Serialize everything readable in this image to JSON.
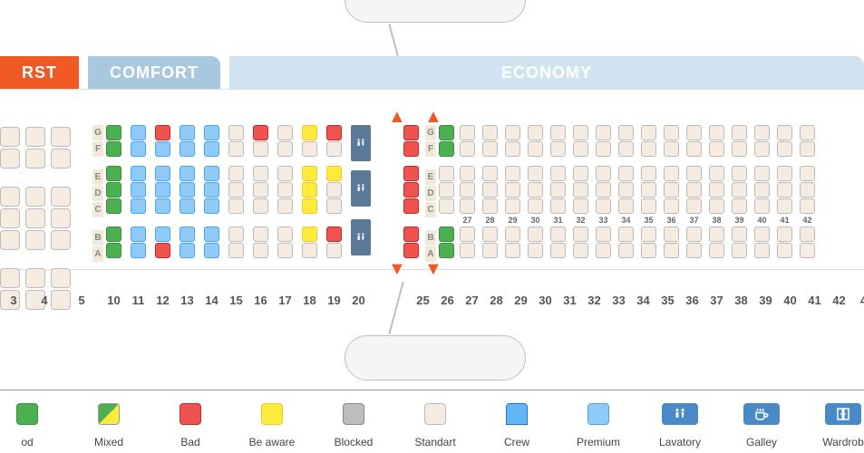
{
  "tabs": {
    "first": "RST",
    "comfort": "COMFORT",
    "economy": "ECONOMY"
  },
  "seat_colors": {
    "good": "#4caf50",
    "mixed_a": "#4caf50",
    "mixed_b": "#ffeb3b",
    "bad": "#ef5350",
    "beaware": "#ffeb3b",
    "blocked": "#bdbdbd",
    "standart": "#f5ebe0",
    "premium": "#90caf9",
    "crew": "#64b5f6",
    "lav_bg": "#5b7a9a",
    "icon_bg": "#4a89c7",
    "tab_first": "#f15a24",
    "tab_comfort": "#a8c8e0",
    "tab_economy": "#cfe3f0"
  },
  "first_rows": [
    "3",
    "4",
    "5"
  ],
  "comfort_rows": [
    "10",
    "11",
    "12",
    "13",
    "14",
    "15",
    "16",
    "17",
    "18",
    "19",
    "20"
  ],
  "economy_rows": [
    "25",
    "26",
    "27",
    "28",
    "29",
    "30",
    "31",
    "32",
    "33",
    "34",
    "35",
    "36",
    "37",
    "38",
    "39",
    "40",
    "41",
    "42",
    "4"
  ],
  "economy_rows_small": [
    "25",
    "26",
    "27",
    "28",
    "29",
    "30",
    "31",
    "32",
    "33",
    "34",
    "35",
    "36",
    "37",
    "38",
    "39",
    "40",
    "41",
    "42"
  ],
  "row_letters_top": [
    "G",
    "F"
  ],
  "row_letters_mid": [
    "E",
    "D",
    "C"
  ],
  "row_letters_bot": [
    "B",
    "A"
  ],
  "comfort_map": {
    "10": {
      "top": [
        "good",
        "good"
      ],
      "mid": [
        "good",
        "good",
        "good"
      ],
      "bot": [
        "good",
        "good"
      ]
    },
    "11": {
      "top": [
        "premium",
        "premium"
      ],
      "mid": [
        "premium",
        "premium",
        "premium"
      ],
      "bot": [
        "premium",
        "premium"
      ]
    },
    "12": {
      "top": [
        "bad",
        "premium"
      ],
      "mid": [
        "premium",
        "premium",
        "premium"
      ],
      "bot": [
        "premium",
        "bad"
      ]
    },
    "13": {
      "top": [
        "premium",
        "premium"
      ],
      "mid": [
        "premium",
        "premium",
        "premium"
      ],
      "bot": [
        "premium",
        "premium"
      ]
    },
    "14": {
      "top": [
        "premium",
        "premium"
      ],
      "mid": [
        "premium",
        "premium",
        "premium"
      ],
      "bot": [
        "premium",
        "premium"
      ]
    },
    "15": {
      "top": [
        "standart",
        "standart"
      ],
      "mid": [
        "standart",
        "standart",
        "standart"
      ],
      "bot": [
        "standart",
        "standart"
      ]
    },
    "16": {
      "top": [
        "bad",
        "standart"
      ],
      "mid": [
        "standart",
        "standart",
        "standart"
      ],
      "bot": [
        "standart",
        "standart"
      ]
    },
    "17": {
      "top": [
        "standart",
        "standart"
      ],
      "mid": [
        "standart",
        "standart",
        "standart"
      ],
      "bot": [
        "standart",
        "standart"
      ]
    },
    "18": {
      "top": [
        "beaware",
        "standart"
      ],
      "mid": [
        "beaware",
        "beaware",
        "beaware"
      ],
      "bot": [
        "beaware",
        "standart"
      ]
    },
    "19": {
      "top": [
        "bad",
        "standart"
      ],
      "mid": [
        "beaware",
        "standart",
        "standart"
      ],
      "bot": [
        "bad",
        "standart"
      ]
    },
    "20": {
      "top": [
        "lav"
      ],
      "mid": [
        "lav"
      ],
      "bot": [
        "lav"
      ]
    }
  },
  "economy_first_col": {
    "top": [
      "bad",
      "bad"
    ],
    "mid": [
      "bad",
      "bad",
      "bad"
    ],
    "bot": [
      "bad",
      "bad"
    ]
  },
  "economy_second_col": {
    "top": [
      "good",
      "good"
    ],
    "mid": [
      "",
      "",
      ""
    ],
    "bot": [
      "good",
      "good"
    ]
  },
  "legend": [
    {
      "key": "good",
      "label": "od",
      "type": "swatch"
    },
    {
      "key": "mixed",
      "label": "Mixed",
      "type": "swatch"
    },
    {
      "key": "bad",
      "label": "Bad",
      "type": "swatch"
    },
    {
      "key": "beaware",
      "label": "Be aware",
      "type": "swatch"
    },
    {
      "key": "blocked",
      "label": "Blocked",
      "type": "swatch"
    },
    {
      "key": "standart",
      "label": "Standart",
      "type": "swatch"
    },
    {
      "key": "crew",
      "label": "Crew",
      "type": "swatch"
    },
    {
      "key": "premium",
      "label": "Premium",
      "type": "swatch"
    },
    {
      "key": "lavatory",
      "label": "Lavatory",
      "type": "icon",
      "icon": "lav"
    },
    {
      "key": "galley",
      "label": "Galley",
      "type": "icon",
      "icon": "cup"
    },
    {
      "key": "wardrobe",
      "label": "Wardrob",
      "type": "icon",
      "icon": "door"
    }
  ]
}
